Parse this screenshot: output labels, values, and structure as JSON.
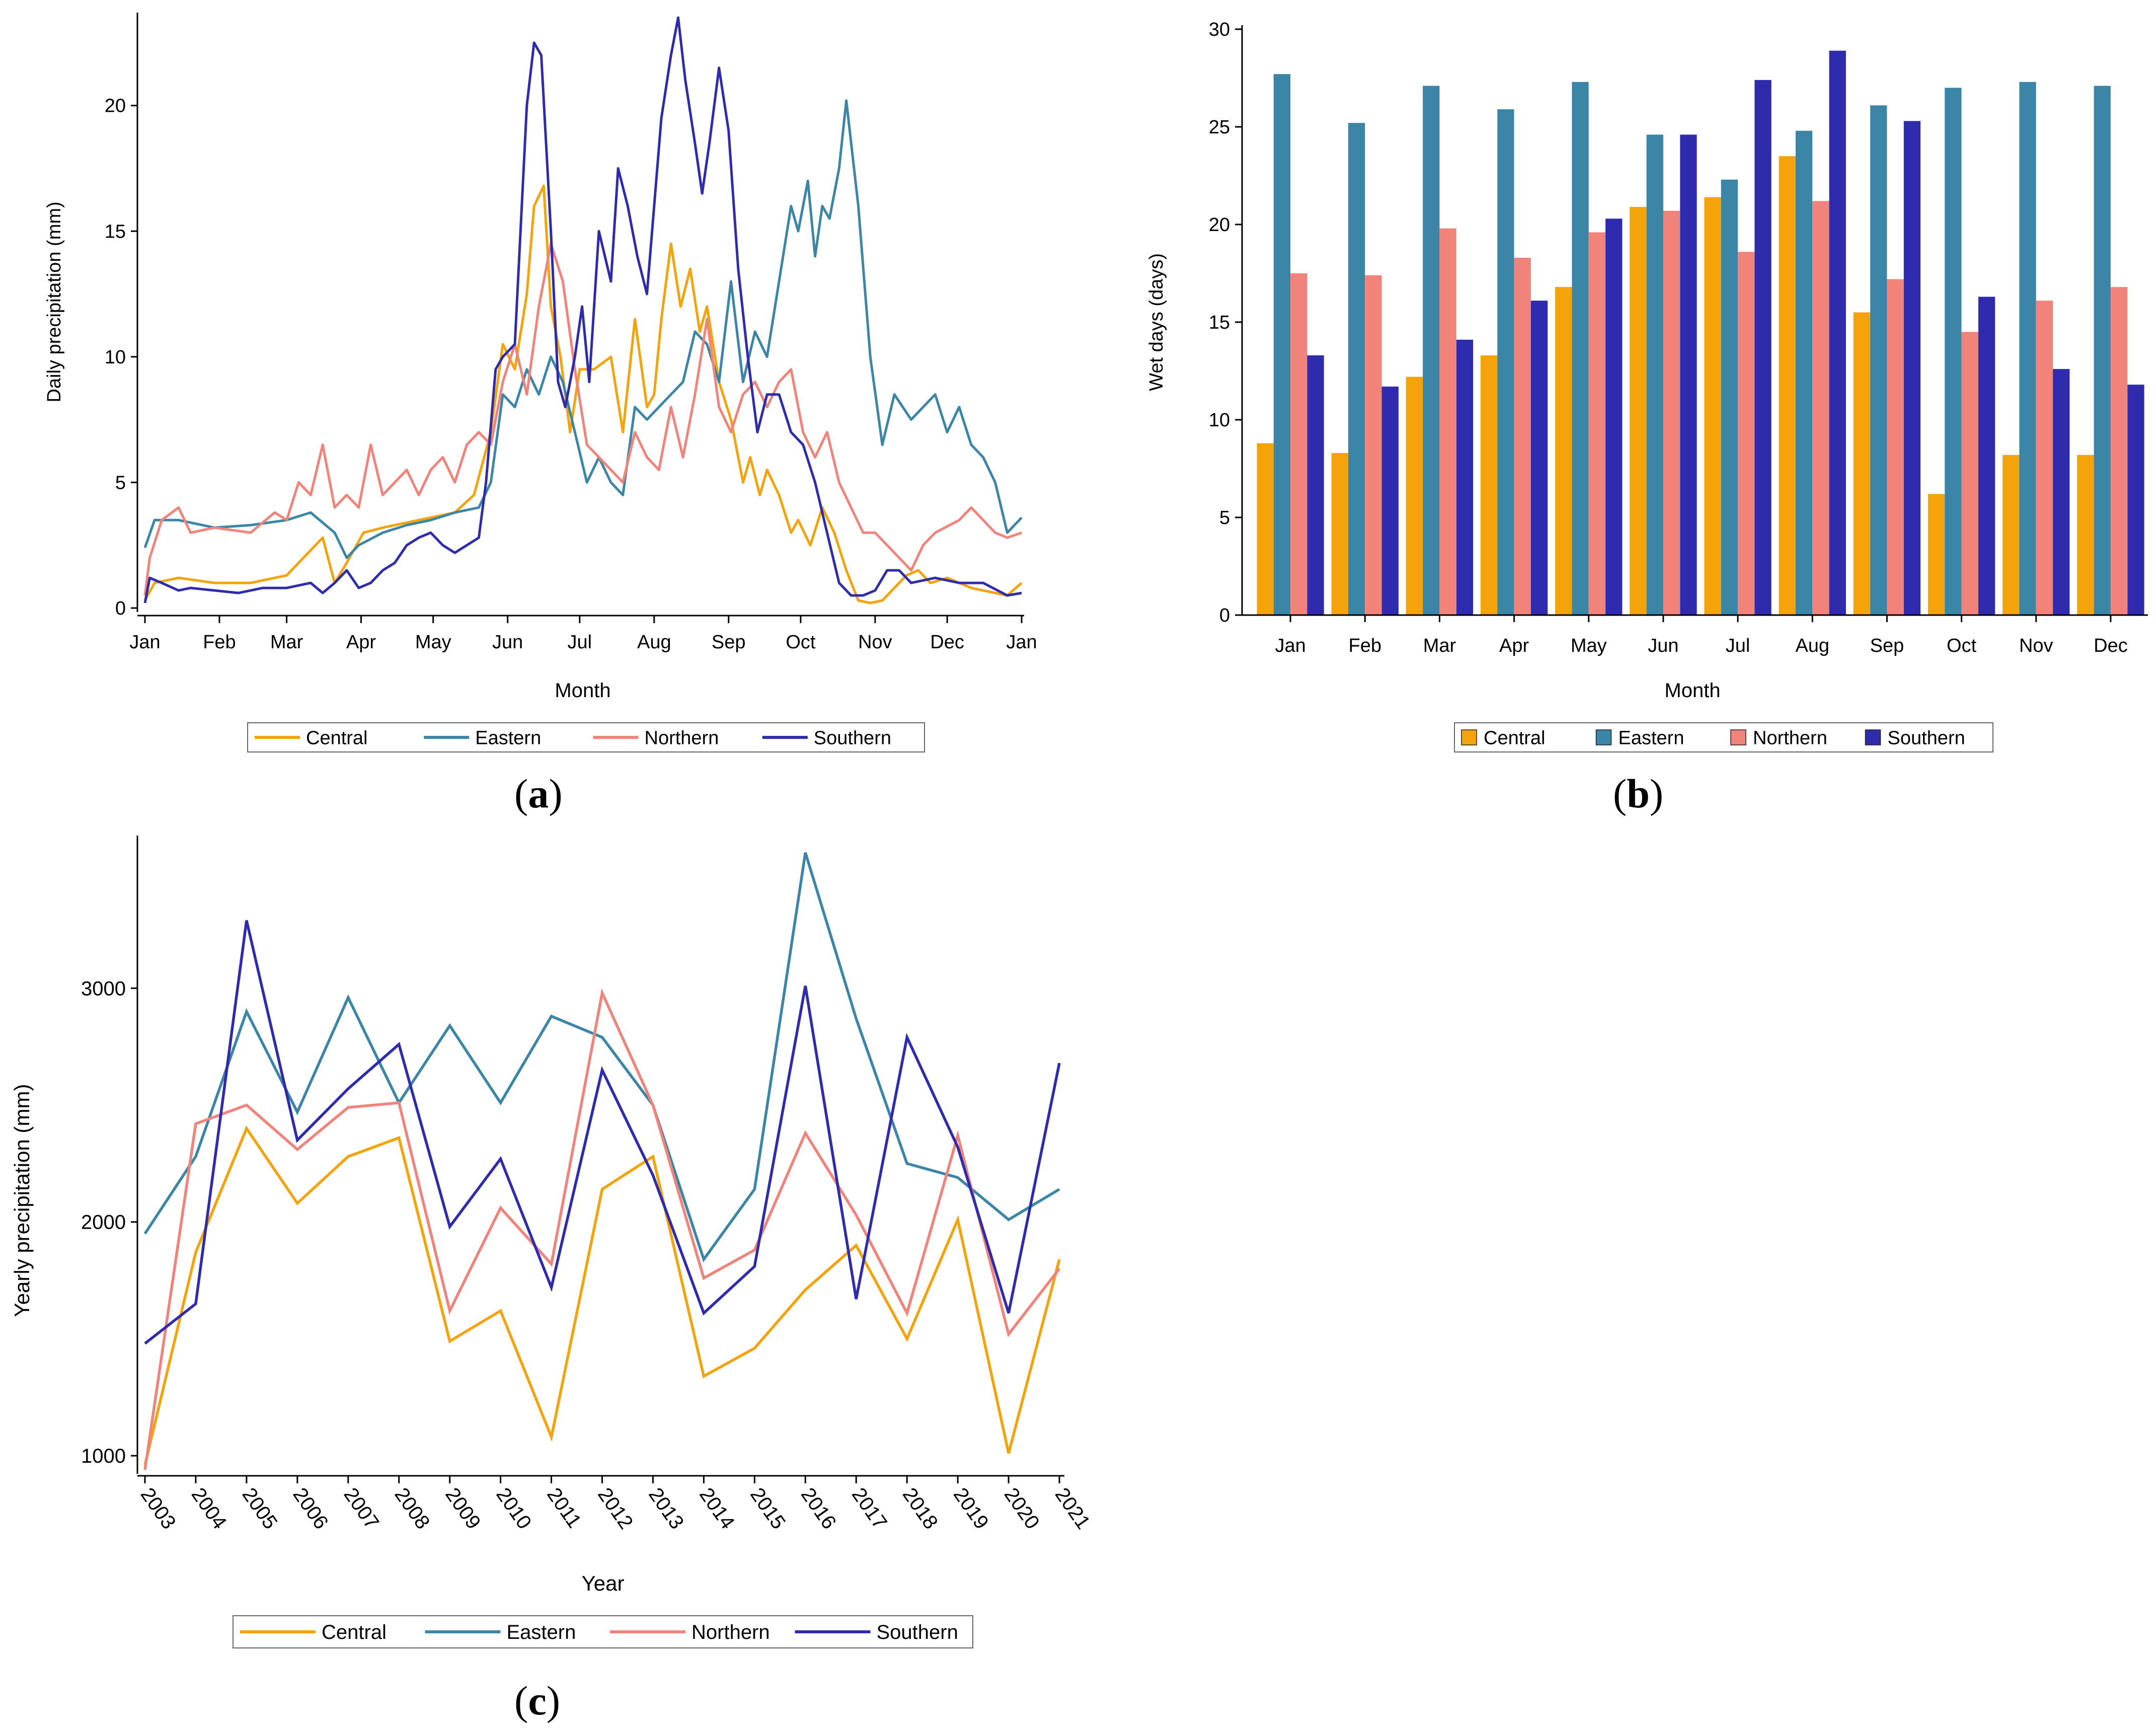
{
  "colors": {
    "Central": "#F5A30A",
    "Eastern": "#3B86A6",
    "Northern": "#F2837A",
    "Southern": "#2E2BAE"
  },
  "panels": {
    "a": {
      "letter": "a"
    },
    "b": {
      "letter": "b"
    },
    "c": {
      "letter": "c"
    }
  },
  "chart_data": [
    {
      "id": "a",
      "type": "line",
      "title": "",
      "xlabel": "Month",
      "ylabel": "Daily precipitation (mm)",
      "xticks": [
        "Jan",
        "Feb",
        "Mar",
        "Apr",
        "May",
        "Jun",
        "Jul",
        "Aug",
        "Sep",
        "Oct",
        "Nov",
        "Dec",
        "Jan"
      ],
      "yticks": [
        0,
        5,
        10,
        15,
        20
      ],
      "ylim": [
        0,
        23.5
      ],
      "x_unit": "day_of_year",
      "xlim": [
        1,
        366
      ],
      "legend": [
        "Central",
        "Eastern",
        "Northern",
        "Southern"
      ],
      "legend_position": "bottom",
      "series": [
        {
          "name": "Central",
          "x": [
            1,
            5,
            15,
            30,
            45,
            60,
            75,
            80,
            85,
            92,
            100,
            110,
            120,
            130,
            138,
            145,
            150,
            155,
            160,
            163,
            167,
            170,
            174,
            178,
            182,
            188,
            195,
            200,
            205,
            210,
            213,
            216,
            220,
            224,
            228,
            232,
            235,
            240,
            245,
            250,
            253,
            257,
            260,
            265,
            270,
            273,
            278,
            283,
            288,
            293,
            298,
            303,
            308,
            313,
            318,
            323,
            328,
            335,
            345,
            355,
            360,
            366
          ],
          "values": [
            0.3,
            1.0,
            1.2,
            1.0,
            1.0,
            1.3,
            2.8,
            1.0,
            1.8,
            3.0,
            3.2,
            3.4,
            3.6,
            3.8,
            4.5,
            7.0,
            10.5,
            9.5,
            12.5,
            16.0,
            16.8,
            12.0,
            10.0,
            7.0,
            9.5,
            9.5,
            10.0,
            7.0,
            11.5,
            8.0,
            8.5,
            11.5,
            14.5,
            12.0,
            13.5,
            11.0,
            12.0,
            9.0,
            7.5,
            5.0,
            6.0,
            4.5,
            5.5,
            4.5,
            3.0,
            3.5,
            2.5,
            4.0,
            3.0,
            1.5,
            0.3,
            0.2,
            0.3,
            0.8,
            1.3,
            1.5,
            1.0,
            1.2,
            0.8,
            0.6,
            0.5,
            1.0
          ]
        },
        {
          "name": "Eastern",
          "x": [
            1,
            5,
            15,
            30,
            45,
            60,
            70,
            80,
            85,
            90,
            100,
            110,
            120,
            130,
            140,
            145,
            150,
            155,
            160,
            165,
            170,
            175,
            180,
            185,
            190,
            195,
            200,
            205,
            210,
            215,
            220,
            225,
            230,
            235,
            240,
            245,
            250,
            255,
            260,
            265,
            270,
            273,
            277,
            280,
            283,
            286,
            290,
            293,
            298,
            303,
            308,
            313,
            320,
            325,
            330,
            335,
            340,
            345,
            350,
            355,
            360,
            366
          ],
          "values": [
            2.4,
            3.5,
            3.5,
            3.2,
            3.3,
            3.5,
            3.8,
            3.0,
            2.0,
            2.5,
            3.0,
            3.3,
            3.5,
            3.8,
            4.0,
            5.0,
            8.5,
            8.0,
            9.5,
            8.5,
            10.0,
            9.0,
            7.0,
            5.0,
            6.0,
            5.0,
            4.5,
            8.0,
            7.5,
            8.0,
            8.5,
            9.0,
            11.0,
            10.5,
            9.0,
            13.0,
            9.0,
            11.0,
            10.0,
            13.0,
            16.0,
            15.0,
            17.0,
            14.0,
            16.0,
            15.5,
            17.5,
            20.2,
            16.0,
            10.0,
            6.5,
            8.5,
            7.5,
            8.0,
            8.5,
            7.0,
            8.0,
            6.5,
            6.0,
            5.0,
            3.0,
            3.6
          ]
        },
        {
          "name": "Northern",
          "x": [
            1,
            3,
            8,
            15,
            20,
            30,
            45,
            55,
            60,
            65,
            70,
            75,
            80,
            85,
            90,
            95,
            100,
            105,
            110,
            115,
            120,
            125,
            130,
            135,
            140,
            145,
            150,
            155,
            160,
            165,
            170,
            175,
            180,
            185,
            190,
            195,
            200,
            205,
            210,
            215,
            220,
            225,
            230,
            235,
            240,
            245,
            250,
            255,
            260,
            265,
            270,
            275,
            280,
            285,
            290,
            295,
            300,
            305,
            310,
            315,
            320,
            325,
            330,
            340,
            345,
            350,
            355,
            360,
            366
          ],
          "values": [
            0.5,
            2.0,
            3.5,
            4.0,
            3.0,
            3.2,
            3.0,
            3.8,
            3.5,
            5.0,
            4.5,
            6.5,
            4.0,
            4.5,
            4.0,
            6.5,
            4.5,
            5.0,
            5.5,
            4.5,
            5.5,
            6.0,
            5.0,
            6.5,
            7.0,
            6.5,
            9.0,
            10.5,
            8.5,
            12.0,
            14.5,
            13.0,
            9.5,
            6.5,
            6.0,
            5.5,
            5.0,
            7.0,
            6.0,
            5.5,
            8.0,
            6.0,
            8.5,
            11.5,
            8.0,
            7.0,
            8.5,
            9.0,
            8.0,
            9.0,
            9.5,
            7.0,
            6.0,
            7.0,
            5.0,
            4.0,
            3.0,
            3.0,
            2.5,
            2.0,
            1.5,
            2.5,
            3.0,
            3.5,
            4.0,
            3.5,
            3.0,
            2.8,
            3.0
          ]
        },
        {
          "name": "Southern",
          "x": [
            1,
            3,
            8,
            15,
            20,
            30,
            40,
            50,
            60,
            70,
            75,
            80,
            85,
            90,
            95,
            100,
            105,
            110,
            115,
            120,
            125,
            130,
            135,
            140,
            143,
            147,
            150,
            155,
            160,
            163,
            166,
            170,
            173,
            176,
            180,
            183,
            186,
            190,
            195,
            198,
            202,
            206,
            210,
            213,
            216,
            220,
            223,
            226,
            230,
            233,
            236,
            240,
            244,
            248,
            252,
            256,
            260,
            265,
            270,
            275,
            280,
            285,
            290,
            295,
            300,
            305,
            310,
            315,
            320,
            330,
            340,
            350,
            360,
            366
          ],
          "values": [
            0.2,
            1.2,
            1.0,
            0.7,
            0.8,
            0.7,
            0.6,
            0.8,
            0.8,
            1.0,
            0.6,
            1.0,
            1.5,
            0.8,
            1.0,
            1.5,
            1.8,
            2.5,
            2.8,
            3.0,
            2.5,
            2.2,
            2.5,
            2.8,
            5.0,
            9.5,
            10.0,
            10.5,
            20.0,
            22.5,
            22.0,
            15.0,
            9.0,
            8.0,
            10.0,
            12.0,
            9.0,
            15.0,
            13.0,
            17.5,
            16.0,
            14.0,
            12.5,
            16.0,
            19.5,
            22.0,
            23.5,
            21.0,
            18.5,
            16.5,
            18.5,
            21.5,
            19.0,
            13.5,
            10.0,
            7.0,
            8.5,
            8.5,
            7.0,
            6.5,
            5.0,
            3.0,
            1.0,
            0.5,
            0.5,
            0.7,
            1.5,
            1.5,
            1.0,
            1.2,
            1.0,
            1.0,
            0.5,
            0.6
          ]
        }
      ]
    },
    {
      "id": "b",
      "type": "bar",
      "title": "",
      "xlabel": "Month",
      "ylabel": "Wet days (days)",
      "categories": [
        "Jan",
        "Feb",
        "Mar",
        "Apr",
        "May",
        "Jun",
        "Jul",
        "Aug",
        "Sep",
        "Oct",
        "Nov",
        "Dec"
      ],
      "yticks": [
        0,
        5,
        10,
        15,
        20,
        25,
        30
      ],
      "ylim": [
        0,
        30
      ],
      "legend": [
        "Central",
        "Eastern",
        "Northern",
        "Southern"
      ],
      "legend_position": "bottom",
      "series": [
        {
          "name": "Central",
          "values": [
            8.8,
            8.3,
            12.2,
            13.3,
            16.8,
            20.9,
            21.4,
            23.5,
            15.5,
            6.2,
            8.2,
            8.2
          ]
        },
        {
          "name": "Eastern",
          "values": [
            27.7,
            25.2,
            27.1,
            25.9,
            27.3,
            24.6,
            22.3,
            24.8,
            26.1,
            27.0,
            27.3,
            27.1
          ]
        },
        {
          "name": "Northern",
          "values": [
            17.5,
            17.4,
            19.8,
            18.3,
            19.6,
            20.7,
            18.6,
            21.2,
            17.2,
            14.5,
            16.1,
            16.8
          ]
        },
        {
          "name": "Southern",
          "values": [
            13.3,
            11.7,
            14.1,
            16.1,
            20.3,
            24.6,
            27.4,
            28.9,
            25.3,
            16.3,
            12.6,
            11.8
          ]
        }
      ]
    },
    {
      "id": "c",
      "type": "line",
      "title": "",
      "xlabel": "Year",
      "ylabel": "Yearly precipitation (mm)",
      "x": [
        "2003",
        "2004",
        "2005",
        "2006",
        "2007",
        "2008",
        "2009",
        "2010",
        "2011",
        "2012",
        "2013",
        "2014",
        "2015",
        "2016",
        "2017",
        "2018",
        "2019",
        "2020",
        "2021"
      ],
      "yticks": [
        1000,
        2000,
        3000
      ],
      "ylim": [
        940,
        3610
      ],
      "legend": [
        "Central",
        "Eastern",
        "Northern",
        "Southern"
      ],
      "legend_position": "bottom",
      "series": [
        {
          "name": "Central",
          "values": [
            960,
            1870,
            2400,
            2080,
            2280,
            2360,
            1490,
            1620,
            1080,
            2140,
            2280,
            1340,
            1460,
            1710,
            1900,
            1500,
            2010,
            1010,
            1840
          ]
        },
        {
          "name": "Eastern",
          "values": [
            1950,
            2280,
            2900,
            2470,
            2960,
            2510,
            2840,
            2510,
            2880,
            2790,
            2500,
            1840,
            2140,
            3580,
            2870,
            2250,
            2190,
            2010,
            2140
          ]
        },
        {
          "name": "Northern",
          "values": [
            940,
            2420,
            2500,
            2310,
            2490,
            2510,
            1620,
            2060,
            1820,
            2980,
            2500,
            1760,
            1880,
            2380,
            2030,
            1610,
            2370,
            1520,
            1800
          ]
        },
        {
          "name": "Southern",
          "values": [
            1480,
            1650,
            3290,
            2350,
            2570,
            2760,
            1980,
            2270,
            1720,
            2650,
            2200,
            1610,
            1810,
            3010,
            1670,
            2790,
            2320,
            1610,
            2680
          ]
        }
      ]
    }
  ]
}
